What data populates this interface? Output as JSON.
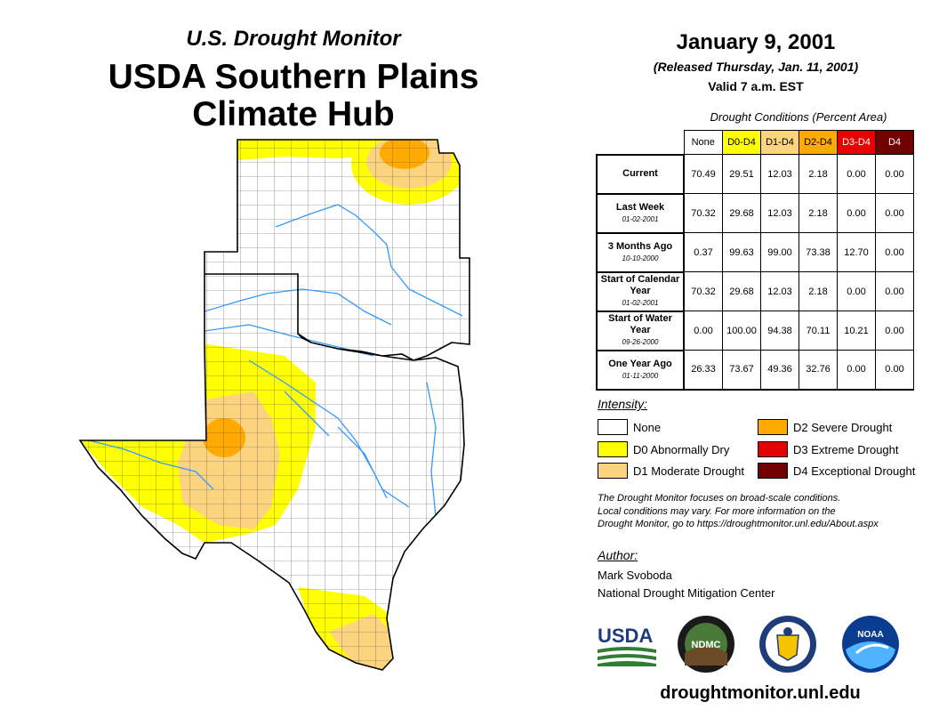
{
  "header": {
    "subtitle": "U.S. Drought Monitor",
    "title_line1": "USDA Southern Plains",
    "title_line2": "Climate Hub",
    "date": "January 9, 2001",
    "released": "(Released Thursday, Jan. 11, 2001)",
    "valid": "Valid 7 a.m. EST"
  },
  "table": {
    "caption": "Drought Conditions (Percent Area)",
    "columns": [
      {
        "label": "None",
        "color": "#ffffff",
        "text_color": "#000000"
      },
      {
        "label": "D0-D4",
        "color": "#ffff00",
        "text_color": "#000000"
      },
      {
        "label": "D1-D4",
        "color": "#fcd37f",
        "text_color": "#000000"
      },
      {
        "label": "D2-D4",
        "color": "#ffaa00",
        "text_color": "#000000"
      },
      {
        "label": "D3-D4",
        "color": "#e60000",
        "text_color": "#ffffff"
      },
      {
        "label": "D4",
        "color": "#730000",
        "text_color": "#ffffff"
      }
    ],
    "rows": [
      {
        "label": "Current",
        "date": "",
        "values": [
          "70.49",
          "29.51",
          "12.03",
          "2.18",
          "0.00",
          "0.00"
        ]
      },
      {
        "label": "Last Week",
        "date": "01-02-2001",
        "values": [
          "70.32",
          "29.68",
          "12.03",
          "2.18",
          "0.00",
          "0.00"
        ]
      },
      {
        "label": "3 Months Ago",
        "date": "10-10-2000",
        "values": [
          "0.37",
          "99.63",
          "99.00",
          "73.38",
          "12.70",
          "0.00"
        ]
      },
      {
        "label": "Start of Calendar Year",
        "date": "01-02-2001",
        "values": [
          "70.32",
          "29.68",
          "12.03",
          "2.18",
          "0.00",
          "0.00"
        ]
      },
      {
        "label": "Start of Water Year",
        "date": "09-26-2000",
        "values": [
          "0.00",
          "100.00",
          "94.38",
          "70.11",
          "10.21",
          "0.00"
        ]
      },
      {
        "label": "One Year Ago",
        "date": "01-11-2000",
        "values": [
          "26.33",
          "73.67",
          "49.36",
          "32.76",
          "0.00",
          "0.00"
        ]
      }
    ]
  },
  "legend": {
    "title": "Intensity:",
    "items": [
      {
        "label": "None",
        "color": "#ffffff"
      },
      {
        "label": "D0 Abnormally Dry",
        "color": "#ffff00"
      },
      {
        "label": "D1 Moderate Drought",
        "color": "#fcd37f"
      },
      {
        "label": "D2 Severe Drought",
        "color": "#ffaa00"
      },
      {
        "label": "D3 Extreme Drought",
        "color": "#e60000"
      },
      {
        "label": "D4 Exceptional Drought",
        "color": "#730000"
      }
    ]
  },
  "note": {
    "line1": "The Drought Monitor focuses on broad-scale conditions.",
    "line2": "Local conditions may vary. For more information on the",
    "line3": "Drought Monitor, go to https://droughtmonitor.unl.edu/About.aspx"
  },
  "author": {
    "title": "Author:",
    "name": "Mark Svoboda",
    "org": "National Drought Mitigation Center"
  },
  "logos": {
    "usda": "USDA",
    "ndmc": "NDMC",
    "noaa": "NOAA"
  },
  "footer_url": "droughtmonitor.unl.edu"
}
